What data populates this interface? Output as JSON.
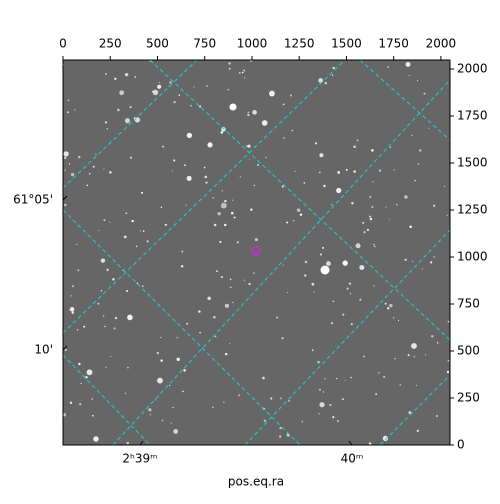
{
  "chart_data": {
    "type": "image",
    "xlabel": "pos.eq.ra",
    "xlim": [
      0,
      2048
    ],
    "ylim": [
      0,
      2048
    ],
    "xticks": [
      0,
      250,
      500,
      750,
      1000,
      1250,
      1500,
      1750,
      2000
    ],
    "yticks": [
      0,
      250,
      500,
      750,
      1000,
      1250,
      1500,
      1750,
      2000
    ],
    "ra_labels": [
      "2ʰ39ᵐ",
      "40ᵐ"
    ],
    "dec_labels": [
      "61°05'",
      "10'"
    ]
  }
}
